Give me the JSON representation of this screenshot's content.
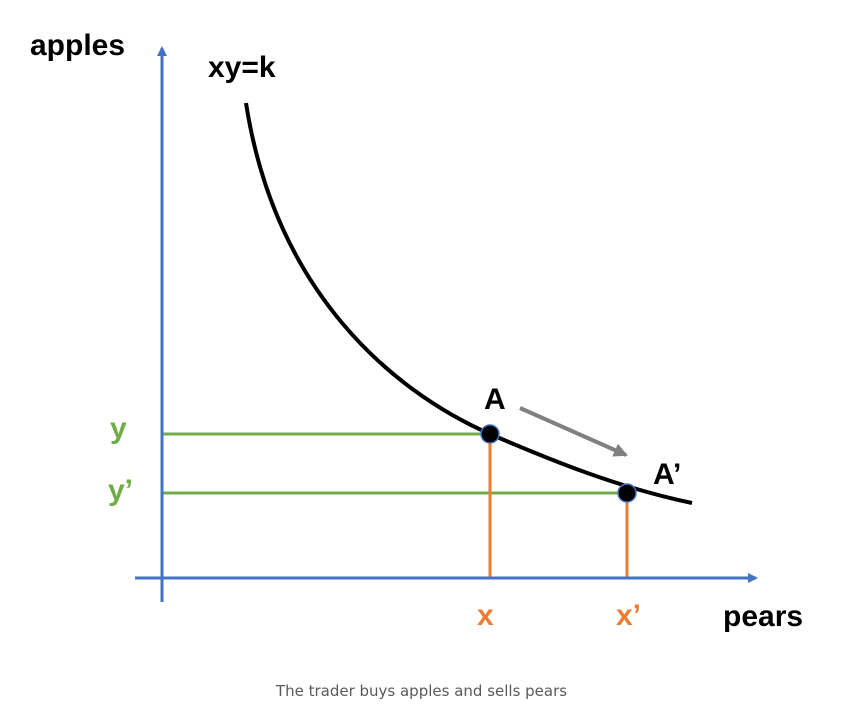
{
  "diagram": {
    "y_axis_label": "apples",
    "x_axis_label": "pears",
    "curve_label": "xy=k",
    "point_a_label": "A",
    "point_a_prime_label": "A’",
    "y_label": "y",
    "y_prime_label": "y’",
    "x_label": "x",
    "x_prime_label": "x’"
  },
  "caption": "The trader buys apples and sells pears",
  "colors": {
    "axis": "#4472c4",
    "curve": "#000000",
    "guide_y": "#70ad47",
    "guide_x": "#ed7d31",
    "arrow": "#808080",
    "caption": "#5a5a5a"
  }
}
